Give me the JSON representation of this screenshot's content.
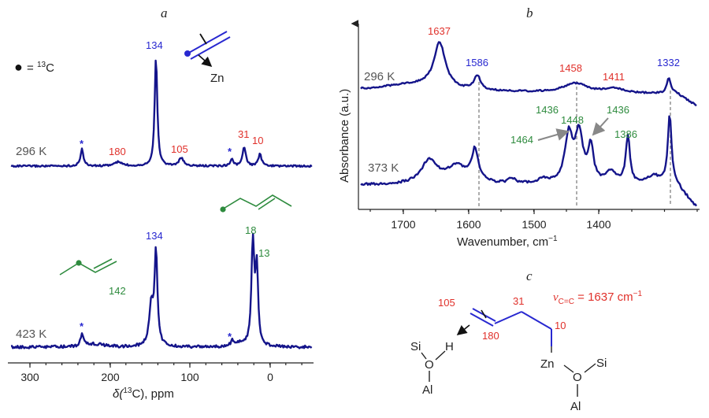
{
  "colors": {
    "spectrum": "#14148a",
    "red": "#e0302a",
    "blue": "#2828d0",
    "green": "#2e8b3e",
    "arrow": "#888888"
  },
  "panel_a": {
    "label": "a",
    "legend_symbol": "●",
    "legend_eq": " = ",
    "legend_sup": "13",
    "legend_el": "C",
    "xlabel_pre": "δ(",
    "xlabel_sup": "13",
    "xlabel_post": "C), ppm",
    "ticks": [
      "300",
      "200",
      "100",
      "0"
    ],
    "top_temp": "296 K",
    "bottom_temp": "423 K",
    "zn_label": "Zn",
    "top_peaks": [
      {
        "text": "*",
        "color": "blue"
      },
      {
        "text": "180",
        "color": "red"
      },
      {
        "text": "134",
        "color": "blue"
      },
      {
        "text": "105",
        "color": "red"
      },
      {
        "text": "*",
        "color": "blue"
      },
      {
        "text": "31",
        "color": "red"
      },
      {
        "text": "10",
        "color": "red"
      }
    ],
    "bottom_peaks": [
      {
        "text": "*",
        "color": "blue"
      },
      {
        "text": "142",
        "color": "green"
      },
      {
        "text": "134",
        "color": "blue"
      },
      {
        "text": "*",
        "color": "blue"
      },
      {
        "text": "18",
        "color": "green"
      },
      {
        "text": "13",
        "color": "green"
      }
    ]
  },
  "panel_b": {
    "label": "b",
    "ylabel": "Absorbance (a.u.)",
    "xlabel_pre": "Wavenumber, cm",
    "xlabel_sup": "−1",
    "ticks": [
      "1700",
      "1600",
      "1500",
      "1400"
    ],
    "top_temp": "296 K",
    "bottom_temp": "373 K",
    "top_peaks": [
      {
        "text": "1637",
        "color": "red"
      },
      {
        "text": "1586",
        "color": "blue"
      },
      {
        "text": "1458",
        "color": "red"
      },
      {
        "text": "1411",
        "color": "red"
      },
      {
        "text": "1332",
        "color": "blue"
      }
    ],
    "bottom_peaks": [
      {
        "text": "1436",
        "color": "green"
      },
      {
        "text": "1448",
        "color": "green"
      },
      {
        "text": "1436",
        "color": "green"
      },
      {
        "text": "1464",
        "color": "green"
      },
      {
        "text": "1386",
        "color": "green"
      }
    ]
  },
  "panel_c": {
    "label": "c",
    "nu_sym": "ν",
    "nu_sub": "C=C",
    "nu_eq": " = 1637 cm",
    "nu_sup": "−1",
    "labels": [
      {
        "text": "105",
        "color": "red"
      },
      {
        "text": "31",
        "color": "red"
      },
      {
        "text": "180",
        "color": "red"
      },
      {
        "text": "10",
        "color": "red"
      }
    ],
    "atoms": {
      "si_left": "Si",
      "o_left": "O",
      "h": "H",
      "al_left": "Al",
      "zn": "Zn",
      "o_right": "O",
      "si_right": "Si",
      "al_right": "Al"
    }
  }
}
